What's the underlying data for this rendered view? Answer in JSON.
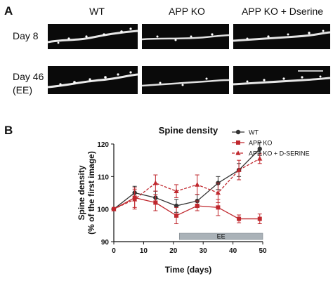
{
  "figure": {
    "panel_a_label": "A",
    "panel_b_label": "B",
    "columns": [
      "WT",
      "APP KO",
      "APP KO + Dserine"
    ],
    "rows": [
      {
        "line1": "Day 8",
        "line2": ""
      },
      {
        "line1": "Day 46",
        "line2": "(EE)"
      }
    ]
  },
  "chart_data": {
    "type": "line",
    "title": "Spine density",
    "xlabel": "Time (days)",
    "ylabel_line1": "Spine density",
    "ylabel_line2": "(% of the first image)",
    "xlim": [
      0,
      50
    ],
    "ylim": [
      90,
      120
    ],
    "xticks": [
      0,
      10,
      20,
      30,
      40,
      50
    ],
    "yticks": [
      90,
      100,
      110,
      120
    ],
    "grid": false,
    "legend_position": "top-right",
    "annotation": {
      "label": "EE",
      "x_start": 22,
      "x_end": 50
    },
    "series": [
      {
        "name": "WT",
        "color": "#333333",
        "marker": "circle",
        "x": [
          0,
          7,
          14,
          21,
          28,
          35,
          42,
          49
        ],
        "y": [
          100,
          105,
          103.5,
          101,
          102.5,
          108,
          112,
          118.5
        ],
        "err": [
          0,
          2,
          2,
          2,
          2,
          2,
          2,
          2
        ]
      },
      {
        "name": "APP KO",
        "color": "#c0282e",
        "marker": "square",
        "x": [
          0,
          7,
          14,
          21,
          28,
          35,
          42,
          49
        ],
        "y": [
          100,
          103.5,
          102,
          98,
          101,
          100.5,
          97,
          97
        ],
        "err": [
          0,
          3,
          2.5,
          2.5,
          1.5,
          2.5,
          1.2,
          1.5
        ]
      },
      {
        "name": "APP KO + D-SERINE",
        "color": "#c0282e",
        "marker": "triangle",
        "x": [
          0,
          7,
          14,
          21,
          28,
          35,
          42,
          49
        ],
        "y": [
          100,
          103,
          108,
          105.5,
          107.5,
          105,
          112,
          115.5
        ],
        "err": [
          0,
          3,
          2.5,
          2,
          3,
          3,
          3,
          1.5
        ]
      }
    ]
  }
}
